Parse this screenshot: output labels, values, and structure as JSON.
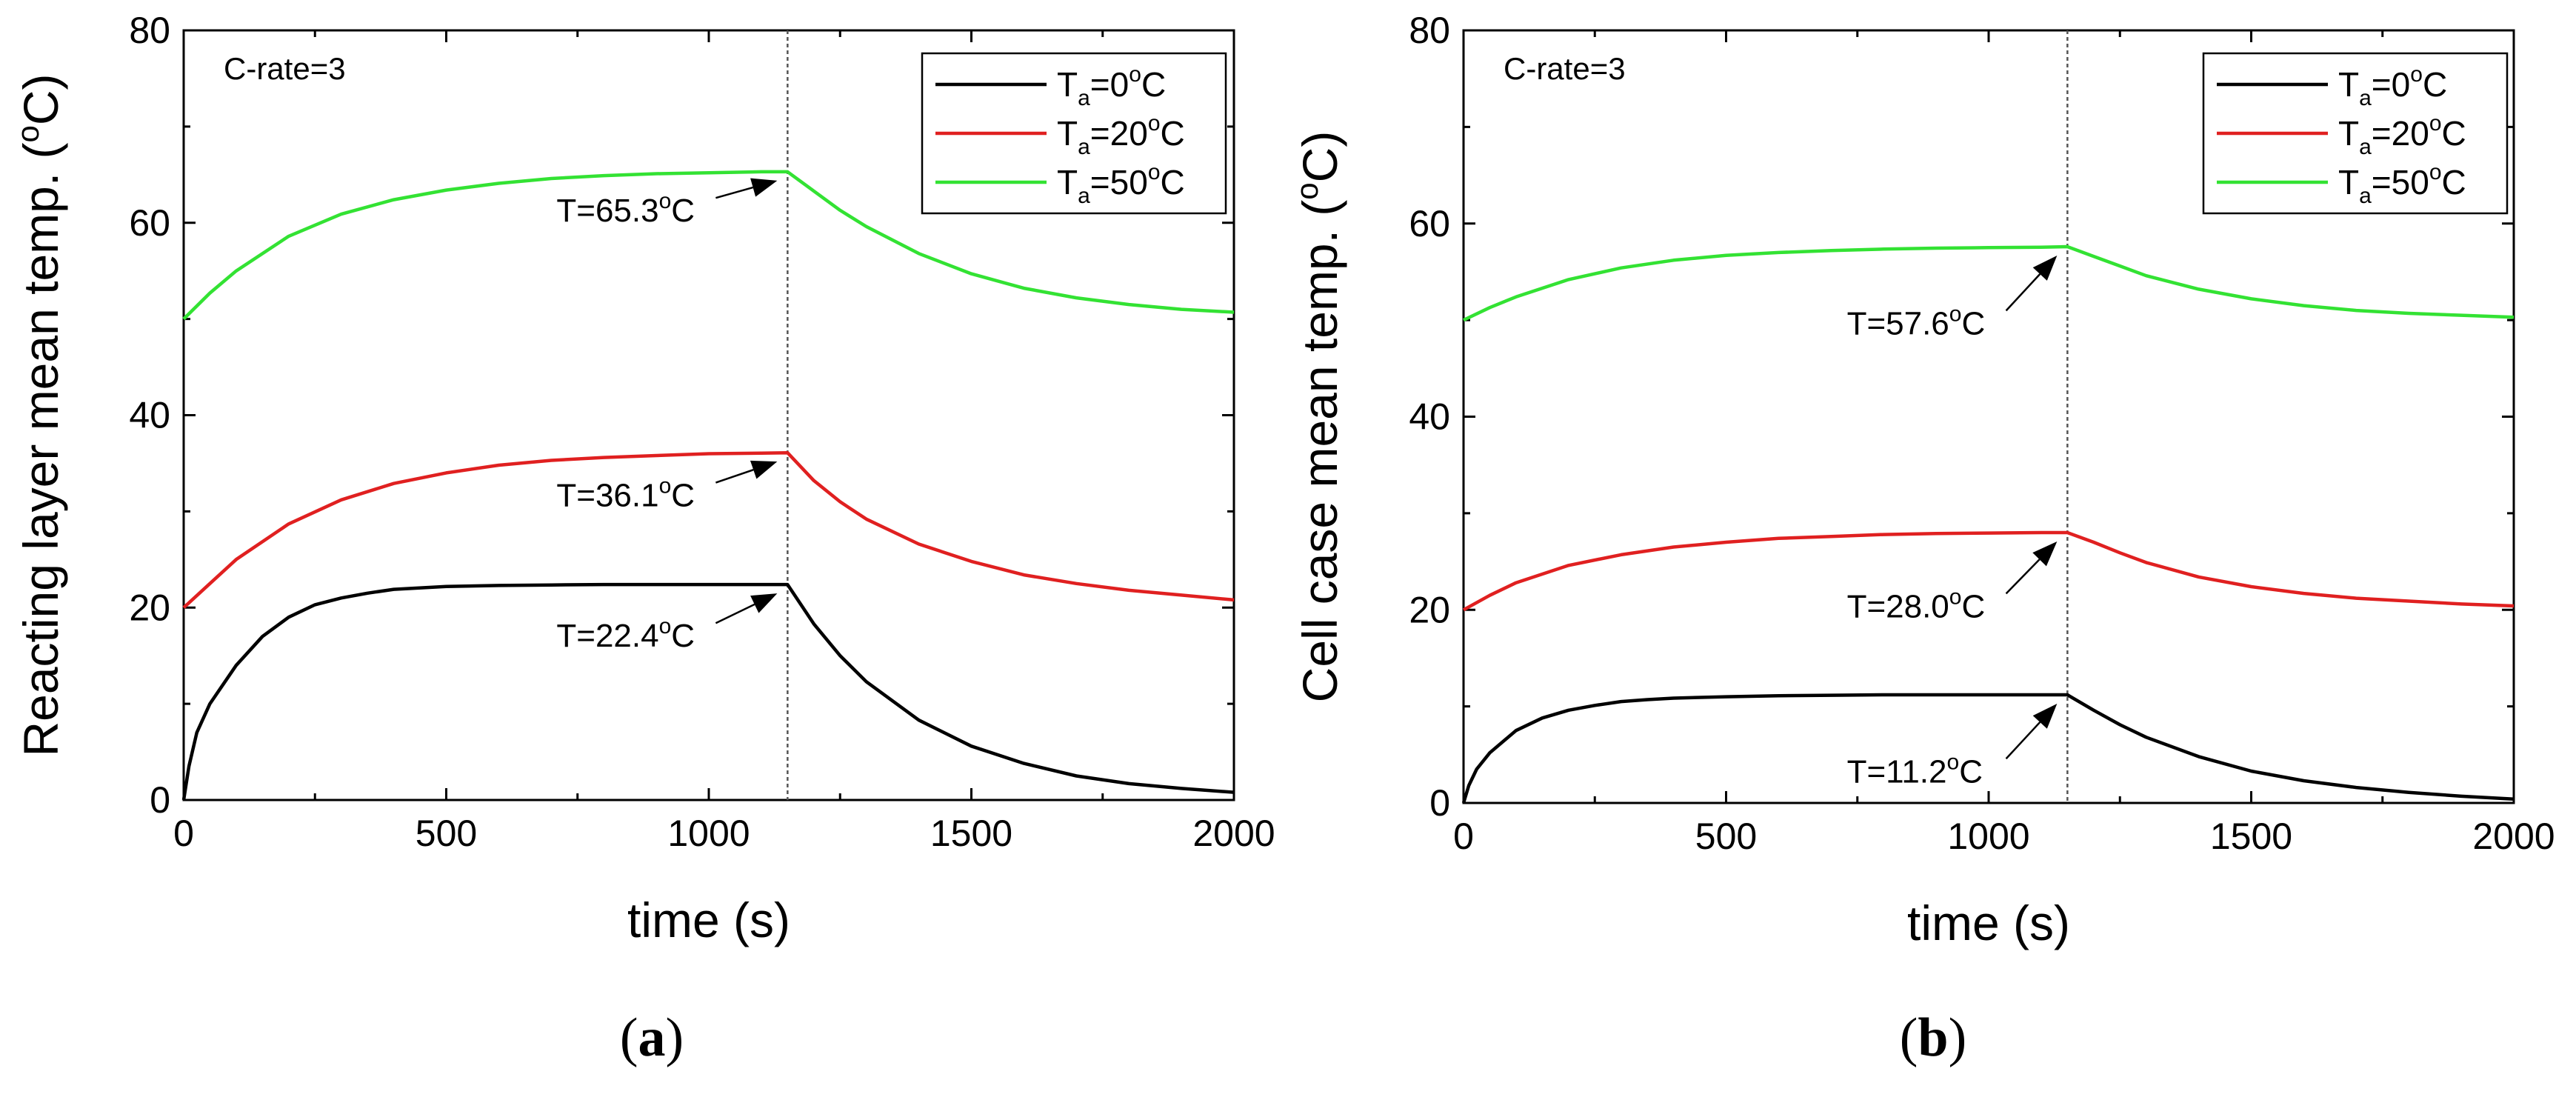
{
  "chart_data": [
    {
      "type": "line",
      "panel_label": "(a)",
      "panel_letter": "a",
      "annotation": "C-rate=3",
      "xlabel": "time (s)",
      "ylabel": "Reacting layer mean temp. (°C)",
      "ylabel_main": "Reacting layer mean temp. (",
      "xlim": [
        0,
        2000
      ],
      "ylim": [
        0,
        80
      ],
      "xticks": [
        0,
        500,
        1000,
        1500,
        2000
      ],
      "yticks": [
        0,
        20,
        40,
        60,
        80
      ],
      "switch_time": 1150,
      "legend_position": "top-right",
      "series": [
        {
          "name": "Ta=0°C",
          "legend_sub": "a",
          "legend_value": "=0",
          "legend_unit": "C",
          "color": "#000000",
          "x": [
            0,
            10,
            25,
            50,
            100,
            150,
            200,
            250,
            300,
            350,
            400,
            500,
            600,
            700,
            800,
            900,
            1000,
            1100,
            1150,
            1200,
            1250,
            1300,
            1400,
            1500,
            1600,
            1700,
            1800,
            1900,
            2000
          ],
          "y": [
            0,
            3.5,
            7,
            10,
            14,
            17,
            19,
            20.3,
            21,
            21.5,
            21.9,
            22.2,
            22.3,
            22.35,
            22.4,
            22.4,
            22.4,
            22.4,
            22.4,
            18.3,
            15.0,
            12.3,
            8.3,
            5.6,
            3.8,
            2.5,
            1.7,
            1.2,
            0.8
          ]
        },
        {
          "name": "Ta=20°C",
          "legend_sub": "a",
          "legend_value": "=20",
          "legend_unit": "C",
          "color": "#e02020",
          "x": [
            0,
            50,
            100,
            200,
            300,
            400,
            500,
            600,
            700,
            800,
            900,
            1000,
            1100,
            1150,
            1200,
            1250,
            1300,
            1400,
            1500,
            1600,
            1700,
            1800,
            1900,
            2000
          ],
          "y": [
            20,
            22.5,
            25,
            28.7,
            31.2,
            32.9,
            34.0,
            34.8,
            35.3,
            35.6,
            35.8,
            36.0,
            36.05,
            36.1,
            33.2,
            31.0,
            29.2,
            26.6,
            24.8,
            23.4,
            22.5,
            21.8,
            21.3,
            20.8
          ]
        },
        {
          "name": "Ta=50°C",
          "legend_sub": "a",
          "legend_value": "=50",
          "legend_unit": "C",
          "color": "#33e233",
          "x": [
            0,
            50,
            100,
            200,
            300,
            400,
            500,
            600,
            700,
            800,
            900,
            1000,
            1100,
            1150,
            1200,
            1250,
            1300,
            1400,
            1500,
            1600,
            1700,
            1800,
            1900,
            2000
          ],
          "y": [
            50,
            52.7,
            55.0,
            58.6,
            60.9,
            62.4,
            63.4,
            64.1,
            64.6,
            64.9,
            65.1,
            65.2,
            65.3,
            65.3,
            63.3,
            61.3,
            59.6,
            56.8,
            54.7,
            53.2,
            52.2,
            51.5,
            51.0,
            50.7
          ]
        }
      ],
      "annotations": [
        {
          "label": "T=65.3",
          "series": 2,
          "x": 1150,
          "y": 65.3,
          "text_x": 710,
          "text_y": 61.2
        },
        {
          "label": "T=36.1",
          "series": 1,
          "x": 1150,
          "y": 36.1,
          "text_x": 710,
          "text_y": 31.6
        },
        {
          "label": "T=22.4",
          "series": 0,
          "x": 1150,
          "y": 22.4,
          "text_x": 710,
          "text_y": 17.0
        }
      ]
    },
    {
      "type": "line",
      "panel_label": "(b)",
      "panel_letter": "b",
      "annotation": "C-rate=3",
      "xlabel": "time (s)",
      "ylabel": "Cell case mean temp. (°C)",
      "ylabel_main": "Cell case mean temp. (",
      "xlim": [
        0,
        2000
      ],
      "ylim": [
        0,
        80
      ],
      "xticks": [
        0,
        500,
        1000,
        1500,
        2000
      ],
      "yticks": [
        0,
        20,
        40,
        60,
        80
      ],
      "switch_time": 1150,
      "legend_position": "top-right",
      "series": [
        {
          "name": "Ta=0°C",
          "legend_sub": "a",
          "legend_value": "=0",
          "legend_unit": "C",
          "color": "#000000",
          "x": [
            0,
            10,
            25,
            50,
            100,
            150,
            200,
            250,
            300,
            350,
            400,
            500,
            600,
            700,
            800,
            900,
            1000,
            1100,
            1150,
            1200,
            1250,
            1300,
            1400,
            1500,
            1600,
            1700,
            1800,
            1900,
            2000
          ],
          "y": [
            0,
            1.8,
            3.5,
            5.2,
            7.5,
            8.8,
            9.6,
            10.1,
            10.5,
            10.7,
            10.85,
            11.0,
            11.1,
            11.15,
            11.2,
            11.2,
            11.2,
            11.2,
            11.2,
            9.6,
            8.1,
            6.8,
            4.8,
            3.3,
            2.3,
            1.6,
            1.1,
            0.7,
            0.4
          ]
        },
        {
          "name": "Ta=20°C",
          "legend_sub": "a",
          "legend_value": "=20",
          "legend_unit": "C",
          "color": "#e02020",
          "x": [
            0,
            50,
            100,
            200,
            300,
            400,
            500,
            600,
            700,
            800,
            900,
            1000,
            1100,
            1150,
            1200,
            1250,
            1300,
            1400,
            1500,
            1600,
            1700,
            1800,
            1900,
            2000
          ],
          "y": [
            20,
            21.5,
            22.8,
            24.6,
            25.7,
            26.5,
            27.0,
            27.4,
            27.6,
            27.8,
            27.9,
            27.95,
            28.0,
            28.0,
            27.0,
            25.9,
            24.9,
            23.4,
            22.4,
            21.7,
            21.2,
            20.9,
            20.6,
            20.4
          ]
        },
        {
          "name": "Ta=50°C",
          "legend_sub": "a",
          "legend_value": "=50",
          "legend_unit": "C",
          "color": "#33e233",
          "x": [
            0,
            50,
            100,
            200,
            300,
            400,
            500,
            600,
            700,
            800,
            900,
            1000,
            1100,
            1150,
            1200,
            1250,
            1300,
            1400,
            1500,
            1600,
            1700,
            1800,
            1900,
            2000
          ],
          "y": [
            50,
            51.3,
            52.4,
            54.2,
            55.4,
            56.2,
            56.7,
            57.0,
            57.2,
            57.35,
            57.45,
            57.5,
            57.55,
            57.6,
            56.6,
            55.6,
            54.6,
            53.2,
            52.2,
            51.5,
            51.0,
            50.7,
            50.5,
            50.3
          ]
        }
      ],
      "annotations": [
        {
          "label": "T=57.6",
          "series": 2,
          "x": 1150,
          "y": 57.6,
          "text_x": 730,
          "text_y": 49.6
        },
        {
          "label": "T=28.0",
          "series": 1,
          "x": 1150,
          "y": 28.0,
          "text_x": 730,
          "text_y": 20.3
        },
        {
          "label": "T=11.2",
          "series": 0,
          "x": 1150,
          "y": 11.2,
          "text_x": 730,
          "text_y": 3.2
        }
      ]
    }
  ]
}
